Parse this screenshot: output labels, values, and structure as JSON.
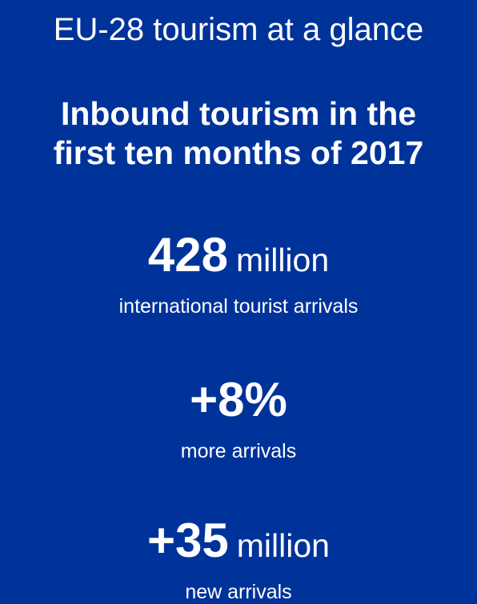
{
  "header": {
    "title": "EU-28 tourism at a glance"
  },
  "subtitle": {
    "line1": "Inbound tourism in the",
    "line2": "first ten months of 2017"
  },
  "stats": [
    {
      "value": "428",
      "unit": "million",
      "caption": "international tourist arrivals"
    },
    {
      "value": "+8%",
      "unit": "",
      "caption": "more arrivals"
    },
    {
      "value": "+35",
      "unit": "million",
      "caption": "new arrivals"
    }
  ],
  "colors": {
    "background": "#00339a",
    "text": "#ffffff"
  }
}
